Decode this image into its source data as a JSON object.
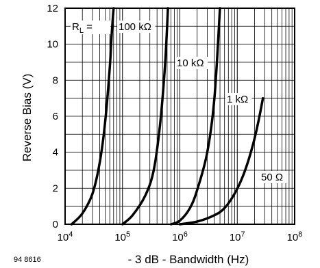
{
  "chart_data": {
    "type": "line",
    "xscale": "log",
    "xlim": [
      10000,
      100000000
    ],
    "ylim": [
      0,
      12
    ],
    "grid": true,
    "xlabel": "- 3 dB - Bandwidth (Hz)",
    "ylabel": "Reverse Bias (V)",
    "xticks": [
      {
        "base": "10",
        "exp": "4"
      },
      {
        "base": "10",
        "exp": "5"
      },
      {
        "base": "10",
        "exp": "6"
      },
      {
        "base": "10",
        "exp": "7"
      },
      {
        "base": "10",
        "exp": "8"
      }
    ],
    "yticks": [
      "0",
      "2",
      "4",
      "6",
      "8",
      "10",
      "12"
    ],
    "legend_prefix": "R",
    "legend_prefix_sub": "L",
    "legend_prefix_suffix": " =",
    "series": [
      {
        "name": "100 kΩ",
        "x": [
          13000,
          20000,
          30000,
          40000,
          50000,
          60000,
          65000,
          70000
        ],
        "y": [
          0,
          0.6,
          1.7,
          3.4,
          5.7,
          8.7,
          10.6,
          12
        ]
      },
      {
        "name": "10 kΩ",
        "x": [
          100000,
          150000,
          250000,
          350000,
          450000,
          550000,
          620000
        ],
        "y": [
          0,
          0.5,
          1.6,
          3.0,
          5.5,
          8.8,
          12
        ]
      },
      {
        "name": "1 kΩ",
        "x": [
          700000,
          1000000,
          1500000,
          2000000,
          3000000,
          4000000,
          5000000
        ],
        "y": [
          0,
          0.2,
          0.9,
          1.9,
          4.0,
          7.0,
          12
        ]
      },
      {
        "name": "50 Ω",
        "x": [
          1000000,
          2000000,
          4000000,
          6000000,
          9000000,
          13000000,
          18000000,
          23000000,
          28000000
        ],
        "y": [
          0,
          0.15,
          0.5,
          0.9,
          1.7,
          2.8,
          4.2,
          5.6,
          7.0
        ]
      }
    ]
  },
  "figure_number": "94 8616"
}
